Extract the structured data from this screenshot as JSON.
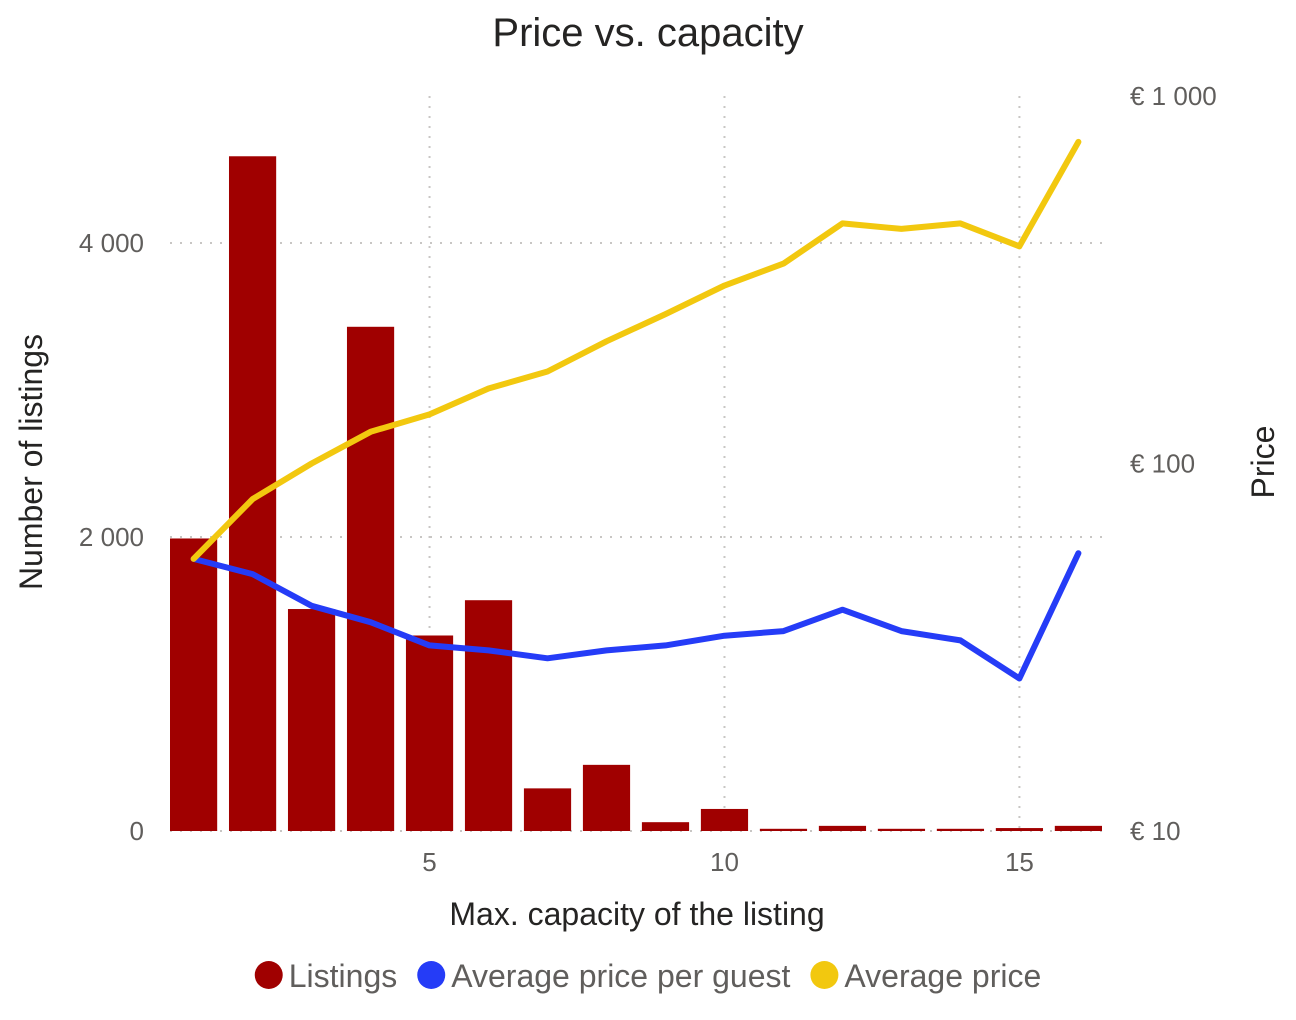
{
  "chart_data": {
    "type": "bar",
    "title": "Price vs. capacity",
    "xlabel": "Max. capacity of the listing",
    "ylabel": "Number of listings",
    "y2label": "Price",
    "x": [
      1,
      2,
      3,
      4,
      5,
      6,
      7,
      8,
      9,
      10,
      11,
      12,
      13,
      14,
      15,
      16
    ],
    "xlim": [
      0.6,
      16.4
    ],
    "x_ticks": [
      5,
      10,
      15
    ],
    "x_tick_labels": [
      "5",
      "10",
      "15"
    ],
    "ylim": [
      0,
      5000
    ],
    "y_ticks": [
      0,
      2000,
      4000
    ],
    "y_tick_labels": [
      "0",
      "2 000",
      "4 000"
    ],
    "y2_scale": "log",
    "y2lim": [
      10,
      1000
    ],
    "y2_ticks": [
      10,
      100,
      1000
    ],
    "y2_tick_labels": [
      "€ 10",
      "€ 100",
      "€ 1 000"
    ],
    "grid": true,
    "legend_position": "bottom",
    "series": [
      {
        "name": "Listings",
        "type": "bar",
        "axis": "left",
        "color": "#a00000",
        "values": [
          1990,
          4590,
          1510,
          3430,
          1330,
          1570,
          290,
          450,
          60,
          150,
          15,
          35,
          15,
          15,
          20,
          35
        ]
      },
      {
        "name": "Average price per guest",
        "type": "line",
        "axis": "right",
        "color": "#253cf7",
        "values": [
          55,
          50,
          41,
          37,
          32,
          31,
          29.5,
          31,
          32,
          34,
          35,
          40,
          35,
          33,
          26,
          57
        ]
      },
      {
        "name": "Average price",
        "type": "line",
        "axis": "right",
        "color": "#f2c80f",
        "values": [
          55,
          80,
          100,
          122,
          136,
          160,
          178,
          215,
          255,
          305,
          350,
          450,
          435,
          450,
          390,
          750
        ]
      }
    ]
  }
}
